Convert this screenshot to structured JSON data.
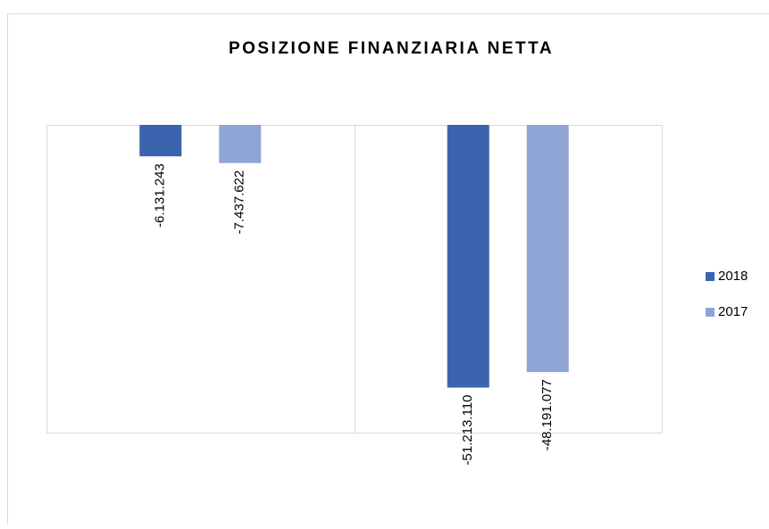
{
  "chart_data": {
    "type": "bar",
    "title": "POSIZIONE FINANZIARIA NETTA",
    "categories": [
      null,
      null
    ],
    "series": [
      {
        "name": "2018",
        "color": "#3a64ad",
        "values": [
          -6131243,
          -51213110
        ],
        "value_labels": [
          "-6.131.243",
          "-51.213.110"
        ]
      },
      {
        "name": "2017",
        "color": "#8fa5d6",
        "values": [
          -7437622,
          -48191077
        ],
        "value_labels": [
          "-7.437.622",
          "-48.191.077"
        ]
      }
    ],
    "ylim": [
      -60000000,
      0
    ],
    "legend": "right"
  }
}
